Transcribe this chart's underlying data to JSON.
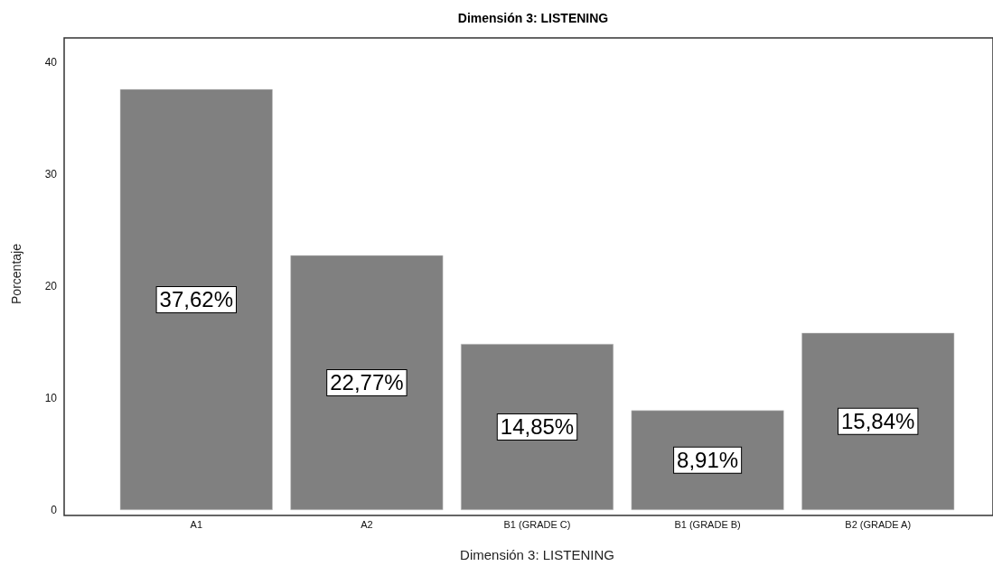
{
  "chart_data": {
    "type": "bar",
    "title": "Dimensión 3: LISTENING",
    "xlabel": "Dimensión 3: LISTENING",
    "ylabel": "Porcentaje",
    "categories": [
      "A1",
      "A2",
      "B1 (GRADE C)",
      "B1 (GRADE B)",
      "B2 (GRADE A)"
    ],
    "values": [
      37.62,
      22.77,
      14.85,
      8.91,
      15.84
    ],
    "value_labels": [
      "37,62%",
      "22,77%",
      "14,85%",
      "8,91%",
      "15,84%"
    ],
    "color": "#808080",
    "ylim": [
      0,
      42.2
    ],
    "yticks": [
      0,
      10,
      20,
      30,
      40
    ]
  }
}
